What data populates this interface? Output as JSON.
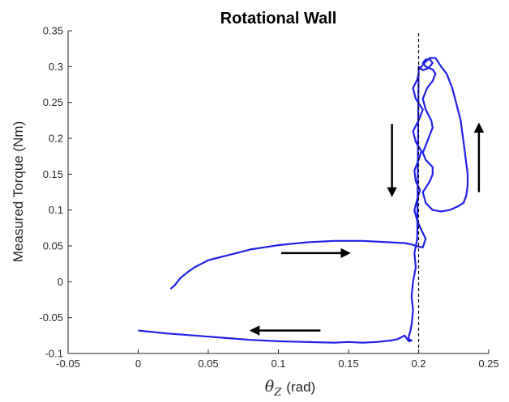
{
  "chart_data": {
    "type": "line",
    "title": "Rotational Wall",
    "xlabel_symbol": "θ",
    "xlabel_subscript": "Z",
    "xlabel_unit": "(rad)",
    "ylabel": "Measured Torque (Nm)",
    "xlim": [
      -0.05,
      0.25
    ],
    "ylim": [
      -0.1,
      0.35
    ],
    "xticks": [
      -0.05,
      0,
      0.05,
      0.1,
      0.15,
      0.2,
      0.25
    ],
    "xtick_labels": [
      "-0.05",
      "0",
      "0.05",
      "0.1",
      "0.15",
      "0.2",
      "0.25"
    ],
    "yticks": [
      -0.1,
      -0.05,
      0,
      0.05,
      0.1,
      0.15,
      0.2,
      0.25,
      0.3,
      0.35
    ],
    "ytick_labels": [
      "-0.1",
      "-0.05",
      "0",
      "0.05",
      "0.1",
      "0.15",
      "0.2",
      "0.25",
      "0.3",
      "0.35"
    ],
    "grid": false,
    "series": [
      {
        "color": "#1f1fe6",
        "x": [
          0.023,
          0.026,
          0.03,
          0.035,
          0.04,
          0.045,
          0.05,
          0.06,
          0.07,
          0.08,
          0.09,
          0.1,
          0.11,
          0.12,
          0.13,
          0.14,
          0.15,
          0.16,
          0.17,
          0.18,
          0.19,
          0.195,
          0.2,
          0.203,
          0.205,
          0.202,
          0.199,
          0.197,
          0.199,
          0.201,
          0.198,
          0.197,
          0.2,
          0.202,
          0.198,
          0.196,
          0.2,
          0.203,
          0.198,
          0.196,
          0.199,
          0.2,
          0.2,
          0.202,
          0.205,
          0.208,
          0.212,
          0.216,
          0.22,
          0.224,
          0.226,
          0.228,
          0.23,
          0.231,
          0.232,
          0.233,
          0.234,
          0.235,
          0.235,
          0.234,
          0.232,
          0.228,
          0.222,
          0.216,
          0.21,
          0.205,
          0.203,
          0.208,
          0.21,
          0.21,
          0.205,
          0.203,
          0.205,
          0.208,
          0.21,
          0.209,
          0.205,
          0.203,
          0.206,
          0.21,
          0.212,
          0.21,
          0.205,
          0.203,
          0.205,
          0.208,
          0.21,
          0.207,
          0.203,
          0.2,
          0.199,
          0.197,
          0.198,
          0.196,
          0.195,
          0.196,
          0.195,
          0.194,
          0.193,
          0.193,
          0.195,
          0.193,
          0.19,
          0.185,
          0.18,
          0.17,
          0.16,
          0.15,
          0.14,
          0.12,
          0.1,
          0.08,
          0.06,
          0.04,
          0.02,
          0.0
        ],
        "y": [
          -0.01,
          -0.005,
          0.005,
          0.013,
          0.02,
          0.025,
          0.03,
          0.035,
          0.04,
          0.045,
          0.048,
          0.051,
          0.053,
          0.055,
          0.056,
          0.057,
          0.057,
          0.057,
          0.056,
          0.055,
          0.054,
          0.052,
          0.049,
          0.048,
          0.06,
          0.072,
          0.085,
          0.1,
          0.115,
          0.128,
          0.14,
          0.155,
          0.17,
          0.182,
          0.195,
          0.21,
          0.225,
          0.24,
          0.255,
          0.27,
          0.282,
          0.29,
          0.295,
          0.3,
          0.307,
          0.312,
          0.312,
          0.3,
          0.29,
          0.27,
          0.255,
          0.24,
          0.225,
          0.21,
          0.195,
          0.18,
          0.165,
          0.15,
          0.135,
          0.12,
          0.11,
          0.105,
          0.1,
          0.098,
          0.1,
          0.11,
          0.125,
          0.14,
          0.15,
          0.16,
          0.17,
          0.18,
          0.19,
          0.205,
          0.215,
          0.225,
          0.24,
          0.255,
          0.27,
          0.28,
          0.29,
          0.296,
          0.3,
          0.305,
          0.31,
          0.31,
          0.305,
          0.298,
          0.295,
          0.3,
          0.06,
          0.04,
          0.02,
          0.0,
          -0.02,
          -0.04,
          -0.06,
          -0.07,
          -0.075,
          -0.08,
          -0.082,
          -0.083,
          -0.075,
          -0.08,
          -0.082,
          -0.084,
          -0.085,
          -0.084,
          -0.085,
          -0.084,
          -0.083,
          -0.081,
          -0.078,
          -0.075,
          -0.072,
          -0.068
        ]
      },
      {
        "color": "#000000",
        "style": "dashed",
        "x": [
          0.2,
          0.2
        ],
        "y": [
          -0.1,
          0.35
        ]
      }
    ],
    "annotations": [
      {
        "type": "arrow",
        "direction": "down",
        "x": 0.181,
        "y": [
          0.22,
          0.125
        ]
      },
      {
        "type": "arrow",
        "direction": "up",
        "x": 0.243,
        "y": [
          0.125,
          0.215
        ]
      },
      {
        "type": "arrow",
        "direction": "right",
        "y": 0.04,
        "x": [
          0.102,
          0.148
        ]
      },
      {
        "type": "arrow",
        "direction": "left",
        "y": -0.068,
        "x": [
          0.13,
          0.083
        ]
      }
    ]
  }
}
